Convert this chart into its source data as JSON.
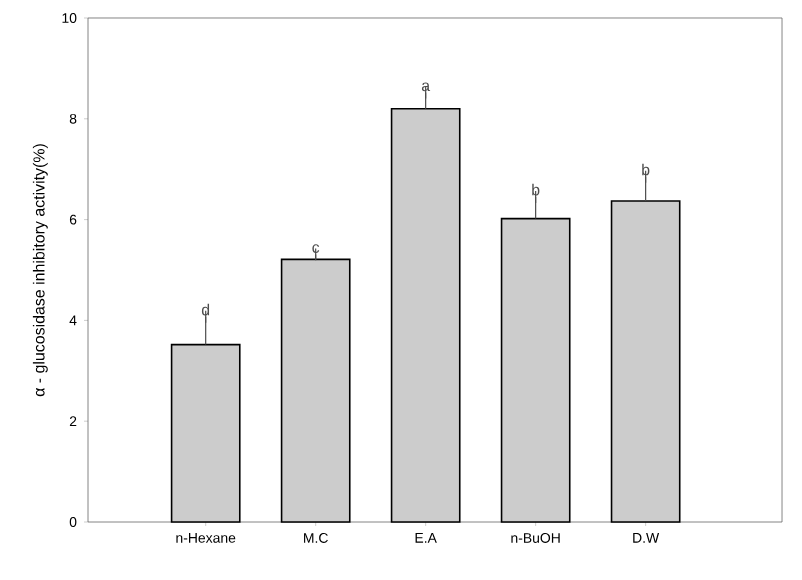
{
  "chart_data": {
    "type": "bar",
    "ylabel": "α - glucosidase inhibitory activity(%)",
    "categories": [
      "n-Hexane",
      "M.C",
      "E.A",
      "n-BuOH",
      "D.W"
    ],
    "values": [
      3.52,
      5.21,
      8.2,
      6.02,
      6.37
    ],
    "errors": [
      [
        3.52,
        4.07
      ],
      [
        5.21,
        5.31
      ],
      [
        8.2,
        8.52
      ],
      [
        6.02,
        6.45
      ],
      [
        6.37,
        6.85
      ]
    ],
    "color": "#cccccc",
    "ylim": [
      0,
      10
    ],
    "yticks": [
      0,
      2,
      4,
      6,
      8,
      10
    ],
    "annotations": [
      "d",
      "c",
      "a",
      "b",
      "b"
    ]
  }
}
